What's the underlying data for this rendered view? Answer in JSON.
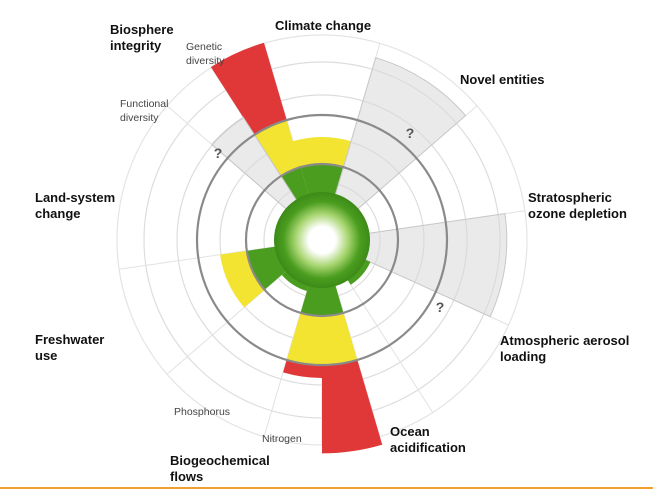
{
  "colors": {
    "safe": "#4a9d1f",
    "increasing_risk": "#f2e430",
    "high_risk": "#e03838",
    "not_quantified": "#d8d8d8",
    "ring_line": "#dddddd",
    "boundary_ring": "#8a8a8a",
    "bottom_rule": "#f0a030"
  },
  "labels": {
    "climate_change": [
      "Climate change"
    ],
    "novel_entities": [
      "Novel entities"
    ],
    "ozone": [
      "Stratospheric",
      "ozone depletion"
    ],
    "aerosol": [
      "Atmospheric aerosol",
      "loading"
    ],
    "ocean": [
      "Ocean",
      "acidification"
    ],
    "biogeochemical": [
      "Biogeochemical",
      "flows"
    ],
    "freshwater": [
      "Freshwater",
      "use"
    ],
    "land_system": [
      "Land-system",
      "change"
    ],
    "biosphere": [
      "Biosphere",
      "integrity"
    ]
  },
  "sublabels": {
    "genetic": [
      "Genetic",
      "diversity"
    ],
    "functional": [
      "Functional",
      "diversity"
    ],
    "phosphorus": [
      "Phosphorus"
    ],
    "nitrogen": [
      "Nitrogen"
    ]
  },
  "unknown_marker": "?",
  "wedges": [
    {
      "key": "genetic_diversity",
      "level": 3.55,
      "status": "high"
    },
    {
      "key": "functional_diversity",
      "level": 2.4,
      "status": "unknown"
    },
    {
      "key": "climate_change",
      "level": 1.55,
      "status": "increasing"
    },
    {
      "key": "novel_entities",
      "level": 3.25,
      "status": "unknown"
    },
    {
      "key": "ozone_depletion",
      "level": 0.6,
      "status": "safe"
    },
    {
      "key": "aerosol_loading",
      "level": 3.15,
      "status": "unknown"
    },
    {
      "key": "ocean_acidification",
      "level": 0.7,
      "status": "safe"
    },
    {
      "key": "nitrogen",
      "level": 3.7,
      "status": "high"
    },
    {
      "key": "phosphorus",
      "level": 2.25,
      "status": "high"
    },
    {
      "key": "freshwater_use",
      "level": 0.7,
      "status": "safe"
    },
    {
      "key": "land_system_change",
      "level": 1.55,
      "status": "increasing"
    }
  ]
}
